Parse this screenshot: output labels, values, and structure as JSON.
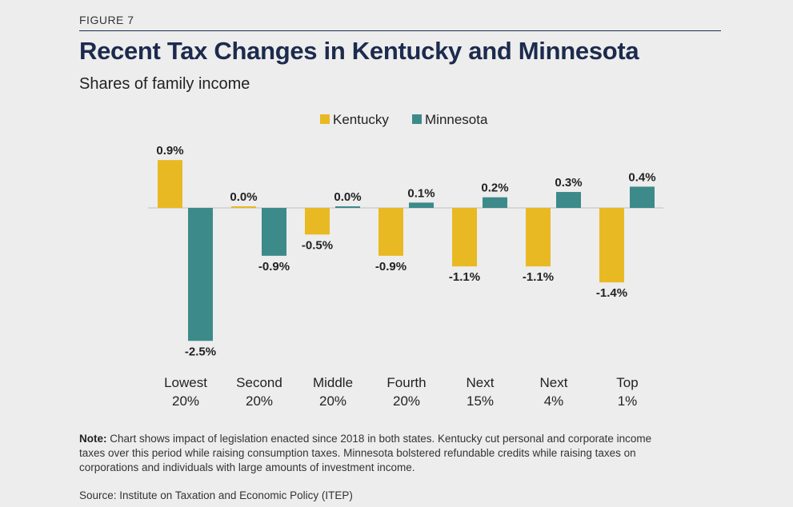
{
  "figure_label": "FIGURE 7",
  "title": "Recent Tax Changes in Kentucky and Minnesota",
  "subtitle": "Shares of family income",
  "note_label": "Note:",
  "note_text": "Chart shows impact of legislation enacted since 2018 in both states. Kentucky cut personal and corporate income taxes over this period while raising consumption taxes. Minnesota bolstered refundable credits while raising taxes on corporations and individuals with large amounts of investment income.",
  "source": "Source: Institute on Taxation and Economic Policy (ITEP)",
  "colors": {
    "kentucky": "#e8b923",
    "minnesota": "#3d8a8a",
    "axis": "#cfcfcf"
  },
  "chart_data": {
    "type": "bar",
    "title": "Recent Tax Changes in Kentucky and Minnesota",
    "subtitle": "Shares of family income",
    "categories": [
      [
        "Lowest",
        "20%"
      ],
      [
        "Second",
        "20%"
      ],
      [
        "Middle",
        "20%"
      ],
      [
        "Fourth",
        "20%"
      ],
      [
        "Next",
        "15%"
      ],
      [
        "Next",
        "4%"
      ],
      [
        "Top",
        "1%"
      ]
    ],
    "series": [
      {
        "name": "Kentucky",
        "values": [
          0.9,
          0.0,
          -0.5,
          -0.9,
          -1.1,
          -1.1,
          -1.4
        ],
        "labels": [
          "0.9%",
          "0.0%",
          "-0.5%",
          "-0.9%",
          "-1.1%",
          "-1.1%",
          "-1.4%"
        ]
      },
      {
        "name": "Minnesota",
        "values": [
          -2.5,
          -0.9,
          0.0,
          0.1,
          0.2,
          0.3,
          0.4
        ],
        "labels": [
          "-2.5%",
          "-0.9%",
          "0.0%",
          "0.1%",
          "0.2%",
          "0.3%",
          "0.4%"
        ]
      }
    ],
    "ylim": [
      -2.5,
      0.9
    ],
    "grid": false,
    "legend": "top-center",
    "xlabel": "",
    "ylabel": ""
  }
}
